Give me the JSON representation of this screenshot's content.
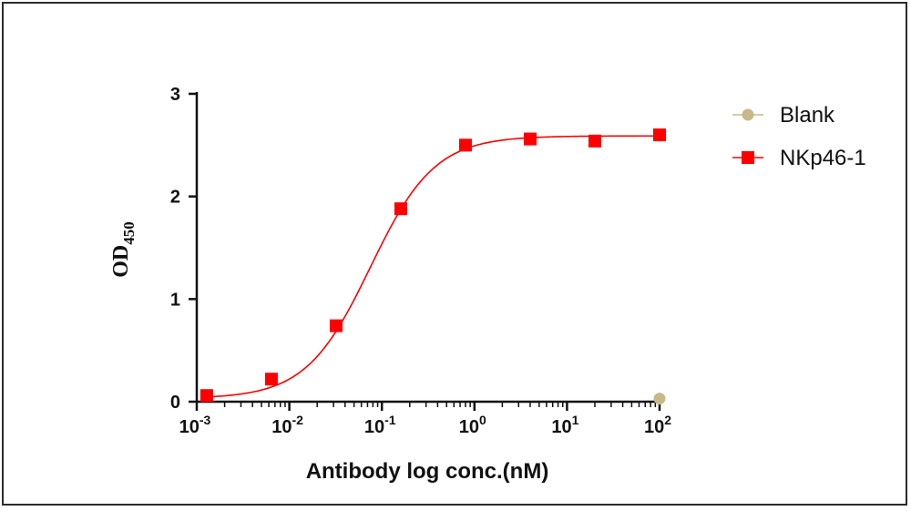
{
  "chart_data": {
    "type": "scatter",
    "xlabel": "Antibody log conc.(nM)",
    "ylabel": {
      "main": "OD",
      "sub": "450"
    },
    "x_scale": "log",
    "xlim": [
      0.001,
      100
    ],
    "ylim": [
      0,
      3
    ],
    "x_ticks": [
      {
        "base": "10",
        "exp": "-3"
      },
      {
        "base": "10",
        "exp": "-2"
      },
      {
        "base": "10",
        "exp": "-1"
      },
      {
        "base": "10",
        "exp": "0"
      },
      {
        "base": "10",
        "exp": "1"
      },
      {
        "base": "10",
        "exp": "2"
      }
    ],
    "y_ticks": [
      "0",
      "1",
      "2",
      "3"
    ],
    "legend_position": "right",
    "series": [
      {
        "name": "Blank",
        "color": "#c8b98a",
        "marker": "circle",
        "x": [
          100
        ],
        "y": [
          0.03
        ]
      },
      {
        "name": "NKp46-1",
        "color": "#ff0000",
        "marker": "square",
        "fit": "4PL",
        "x": [
          0.00128,
          0.0064,
          0.032,
          0.16,
          0.8,
          4,
          20,
          100
        ],
        "y": [
          0.06,
          0.22,
          0.74,
          1.88,
          2.5,
          2.56,
          2.54,
          2.6
        ]
      }
    ]
  }
}
